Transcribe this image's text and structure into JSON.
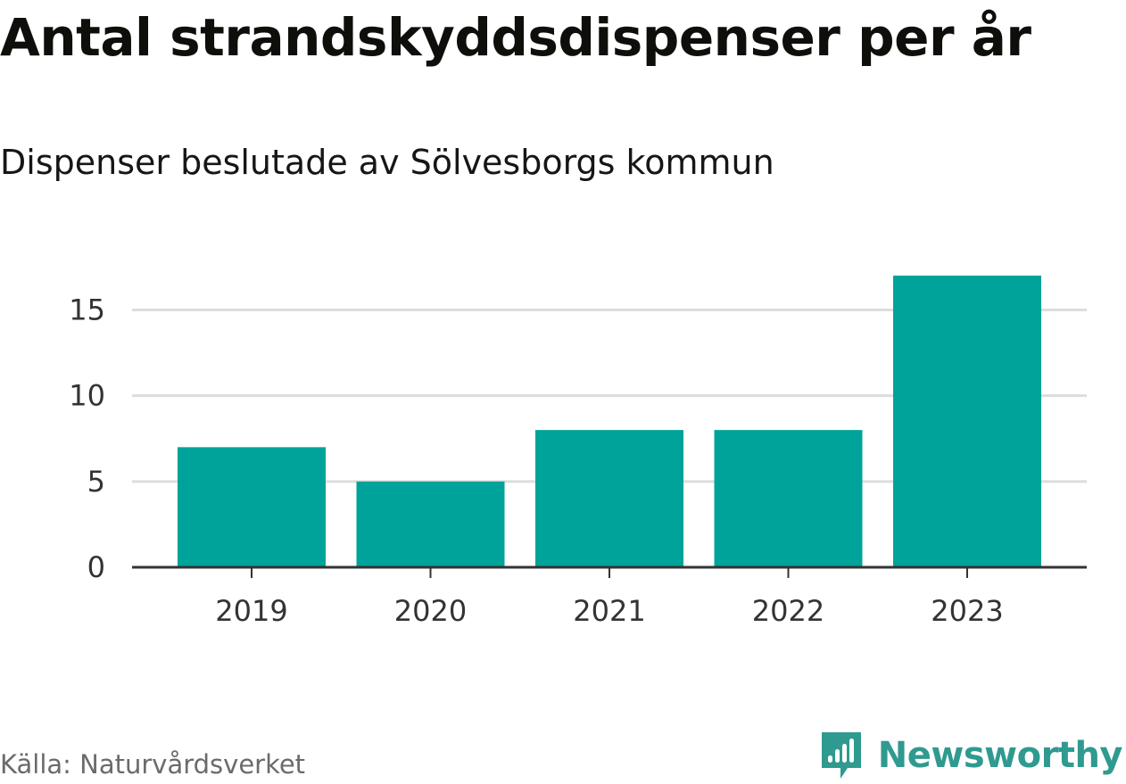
{
  "header": {
    "title": "Antal strandskyddsdispenser per år",
    "subtitle": "Dispenser beslutade av Sölvesborgs kommun"
  },
  "footer": {
    "source": "Källa: Naturvårdsverket",
    "brand": "Newsworthy"
  },
  "colors": {
    "bar": "#00a39a",
    "grid": "#dddddd",
    "axis": "#333333",
    "brand": "#2f9a90"
  },
  "chart_data": {
    "type": "bar",
    "title": "Antal strandskyddsdispenser per år",
    "subtitle": "Dispenser beslutade av Sölvesborgs kommun",
    "categories": [
      "2019",
      "2020",
      "2021",
      "2022",
      "2023"
    ],
    "values": [
      7,
      5,
      8,
      8,
      17
    ],
    "yticks": [
      0,
      5,
      10,
      15
    ],
    "ylim": [
      0,
      17
    ],
    "xlabel": "",
    "ylabel": "",
    "grid": true,
    "legend": "none"
  }
}
